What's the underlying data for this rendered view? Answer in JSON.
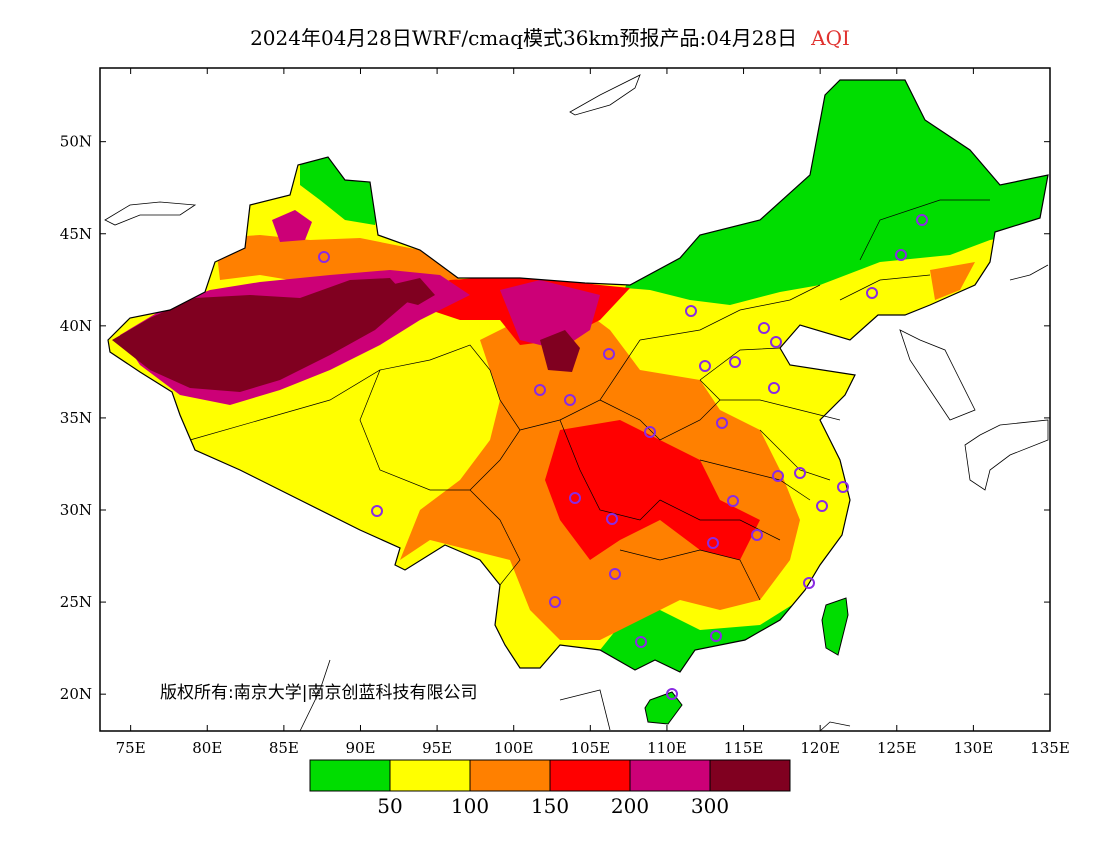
{
  "title": {
    "main": "2024年04月28日WRF/cmaq模式36km预报产品:04月28日",
    "variable": "AQI"
  },
  "copyright": "版权所有:南京大学|南京创蓝科技有限公司",
  "map": {
    "lon_range": [
      73,
      135
    ],
    "lat_range": [
      18,
      54
    ],
    "x_ticks": [
      "75E",
      "80E",
      "85E",
      "90E",
      "95E",
      "100E",
      "105E",
      "110E",
      "115E",
      "120E",
      "125E",
      "130E",
      "135E"
    ],
    "y_ticks": [
      "20N",
      "25N",
      "30N",
      "35N",
      "40N",
      "45N",
      "50N"
    ],
    "city_marker_color": "#8a2be2"
  },
  "colorbar": {
    "colors": [
      "#00dd00",
      "#ffff00",
      "#ff8000",
      "#ff0000",
      "#cc0077",
      "#800020"
    ],
    "labels": [
      "50",
      "100",
      "150",
      "200",
      "300"
    ]
  }
}
